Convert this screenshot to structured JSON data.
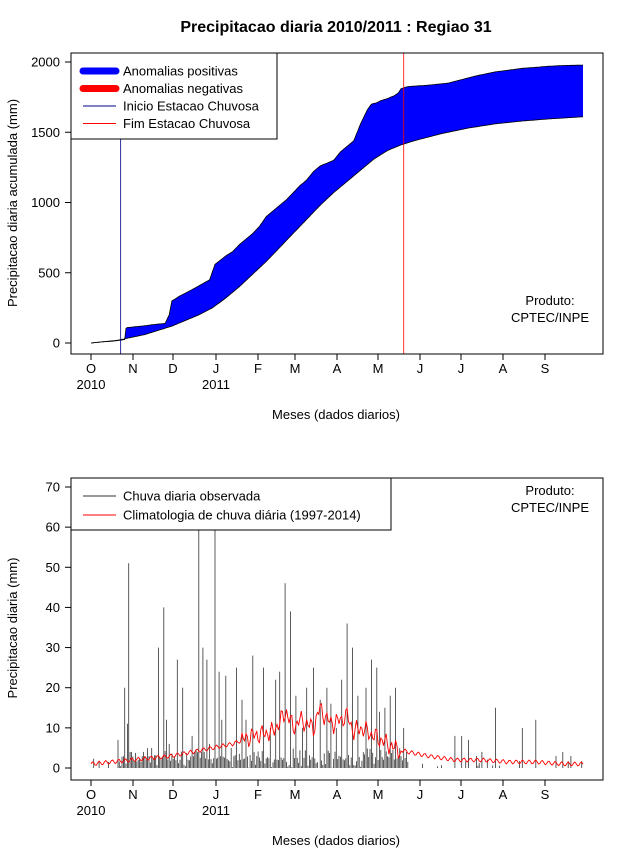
{
  "chart_data": [
    {
      "type": "area",
      "title": "Precipitacao diaria 2010/2011 : Regiao 31",
      "xlabel": "Meses (dados diarios)",
      "ylabel": "Precipitacao diaria acumulada (mm)",
      "ylim": [
        0,
        2000
      ],
      "yticks": [
        "0",
        "500",
        "1000",
        "1500",
        "2000"
      ],
      "month_ticks": [
        "O",
        "N",
        "D",
        "J",
        "F",
        "M",
        "A",
        "M",
        "J",
        "J",
        "A",
        "S"
      ],
      "year_labels": [
        {
          "month_index": 0,
          "label": "2010"
        },
        {
          "month_index": 3,
          "label": "2011"
        }
      ],
      "legend_position": "top-left",
      "product_note": [
        "Produto:",
        "CPTEC/INPE"
      ],
      "colors": {
        "positive": "#0000ff",
        "negative": "#ff0000",
        "onset": "#00008b",
        "end": "#ff0000"
      },
      "legend": [
        {
          "label": "Anomalias positivas",
          "kind": "thick",
          "color": "#0000ff"
        },
        {
          "label": "Anomalias negativas",
          "kind": "thick",
          "color": "#ff0000"
        },
        {
          "label": "Inicio Estacao Chuvosa",
          "kind": "thin",
          "color": "#00008b"
        },
        {
          "label": "Fim Estacao Chuvosa",
          "kind": "thin",
          "color": "#ff0000"
        }
      ],
      "onset_day": 22,
      "end_day": 232,
      "n_days": 365,
      "observed_cumulative": {
        "day": [
          0,
          5,
          8,
          15,
          22,
          25,
          26,
          27,
          35,
          42,
          45,
          55,
          58,
          60,
          62,
          65,
          75,
          88,
          92,
          100,
          105,
          110,
          120,
          125,
          130,
          135,
          140,
          145,
          155,
          160,
          165,
          170,
          175,
          180,
          185,
          190,
          195,
          200,
          205,
          208,
          212,
          215,
          220,
          225,
          228,
          230,
          235,
          250,
          265,
          285,
          300,
          320,
          340,
          350,
          365
        ],
        "value": [
          0,
          5,
          8,
          12,
          20,
          25,
          105,
          110,
          118,
          125,
          130,
          140,
          200,
          300,
          310,
          330,
          380,
          450,
          560,
          620,
          650,
          700,
          780,
          830,
          900,
          940,
          980,
          1020,
          1120,
          1160,
          1220,
          1260,
          1280,
          1300,
          1360,
          1400,
          1440,
          1560,
          1660,
          1700,
          1710,
          1725,
          1740,
          1760,
          1780,
          1810,
          1825,
          1835,
          1850,
          1900,
          1930,
          1955,
          1970,
          1975,
          1978
        ]
      },
      "climatology_cumulative": {
        "day": [
          0,
          10,
          20,
          30,
          40,
          50,
          60,
          70,
          80,
          90,
          100,
          110,
          120,
          130,
          140,
          150,
          160,
          170,
          180,
          190,
          200,
          210,
          220,
          230,
          240,
          260,
          280,
          300,
          320,
          340,
          365
        ],
        "value": [
          0,
          10,
          20,
          40,
          60,
          90,
          120,
          160,
          200,
          250,
          320,
          400,
          490,
          580,
          680,
          780,
          880,
          980,
          1070,
          1150,
          1230,
          1310,
          1370,
          1410,
          1440,
          1490,
          1530,
          1560,
          1580,
          1595,
          1610
        ]
      }
    },
    {
      "type": "line",
      "xlabel": "Meses (dados diarios)",
      "ylabel": "Precipitacao diaria (mm)",
      "ylim": [
        0,
        70
      ],
      "yticks": [
        "0",
        "10",
        "20",
        "30",
        "40",
        "50",
        "60",
        "70"
      ],
      "month_ticks": [
        "O",
        "N",
        "D",
        "J",
        "F",
        "M",
        "A",
        "M",
        "J",
        "J",
        "A",
        "S"
      ],
      "year_labels": [
        {
          "month_index": 0,
          "label": "2010"
        },
        {
          "month_index": 3,
          "label": "2011"
        }
      ],
      "legend_position": "top-left",
      "product_note": [
        "Produto:",
        "CPTEC/INPE"
      ],
      "colors": {
        "observed": "#333333",
        "climatology": "#ff0000"
      },
      "legend": [
        {
          "label": "Chuva diaria observada",
          "color": "#333333"
        },
        {
          "label": "Climatologia de chuva diária (1997-2014)",
          "color": "#ff0000"
        }
      ],
      "n_days": 365,
      "observed_peaks": {
        "day": [
          20,
          25,
          27,
          28,
          30,
          40,
          45,
          50,
          54,
          56,
          58,
          62,
          64,
          68,
          75,
          80,
          83,
          86,
          88,
          92,
          95,
          97,
          100,
          104,
          108,
          112,
          115,
          120,
          128,
          133,
          137,
          140,
          144,
          148,
          152,
          157,
          160,
          165,
          170,
          175,
          178,
          182,
          186,
          190,
          194,
          198,
          204,
          208,
          212,
          214,
          218,
          222,
          226,
          232,
          270,
          275,
          280,
          286,
          290,
          300,
          320,
          330,
          345,
          350,
          356
        ],
        "value": [
          7,
          20,
          11,
          51,
          4,
          3,
          5,
          30,
          40,
          12,
          6,
          3,
          27,
          20,
          8,
          60,
          30,
          27,
          6,
          60,
          24,
          12,
          23,
          5,
          25,
          17,
          12,
          28,
          25,
          10,
          22,
          24,
          46,
          39,
          18,
          10,
          20,
          25,
          17,
          20,
          16,
          10,
          22,
          36,
          30,
          18,
          20,
          27,
          25,
          14,
          15,
          18,
          20,
          10,
          8,
          8,
          7,
          3,
          4,
          15,
          10,
          12,
          3,
          4,
          3
        ]
      },
      "climatology": {
        "day": [
          0,
          15,
          30,
          45,
          60,
          75,
          90,
          105,
          120,
          135,
          145,
          150,
          155,
          160,
          165,
          170,
          175,
          180,
          185,
          190,
          195,
          200,
          205,
          210,
          215,
          225,
          235,
          250,
          270,
          290,
          310,
          330,
          350,
          365
        ],
        "value": [
          1,
          1.5,
          2,
          2.5,
          3,
          4,
          5,
          6,
          8,
          9,
          14,
          10,
          12,
          11,
          10,
          15,
          12,
          11,
          12,
          13,
          9,
          10,
          9,
          8,
          7,
          5,
          4,
          3,
          2,
          2,
          1.5,
          1.5,
          1,
          1
        ]
      }
    }
  ]
}
